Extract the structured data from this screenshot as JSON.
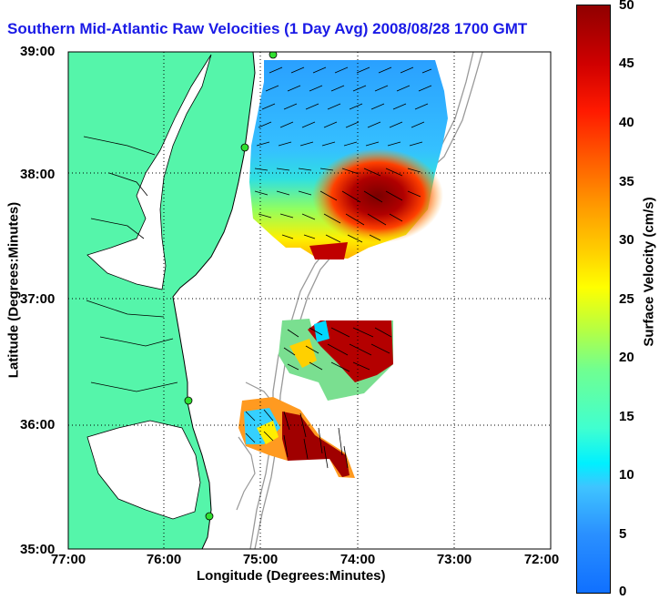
{
  "title": "Southern Mid-Atlantic Raw Velocities (1 Day Avg) 2008/08/28 1700 GMT",
  "axes": {
    "xlabel": "Longitude (Degrees:Minutes)",
    "ylabel": "Latitude (Degrees:Minutes)",
    "xticks": [
      "77:00",
      "76:00",
      "75:00",
      "74:00",
      "73:00",
      "72:00"
    ],
    "yticks": [
      "39:00",
      "38:00",
      "37:00",
      "36:00",
      "35:00"
    ]
  },
  "colorbar": {
    "label": "Surface Velocity (cm/s)",
    "ticks": [
      "50",
      "45",
      "40",
      "35",
      "30",
      "25",
      "20",
      "15",
      "10",
      "5",
      "0"
    ],
    "min": 0,
    "max": 50
  },
  "colors": {
    "land": "#55f5aa",
    "water": "#ffffff",
    "title": "#1a1ae6",
    "station": "#30e030"
  }
}
